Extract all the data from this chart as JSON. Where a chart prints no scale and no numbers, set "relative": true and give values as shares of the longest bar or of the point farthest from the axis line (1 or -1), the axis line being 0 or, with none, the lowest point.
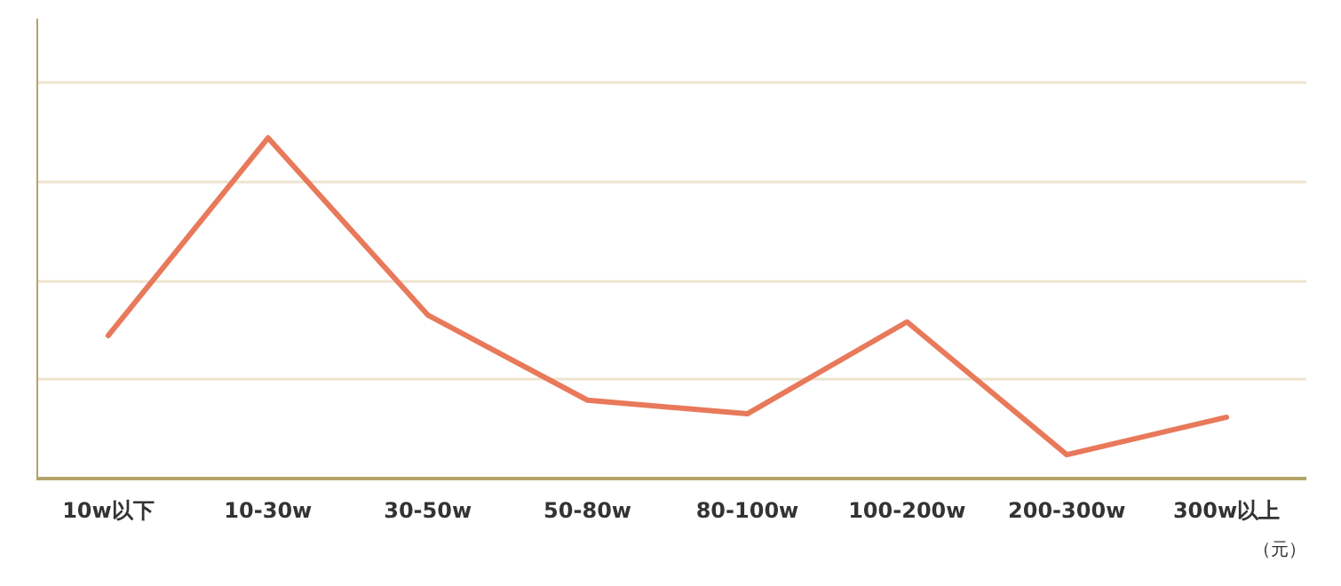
{
  "chart_data": {
    "type": "line",
    "relative": true,
    "xlabel": "（元）",
    "categories": [
      "10w以下",
      "10-30w",
      "30-50w",
      "50-80w",
      "80-100w",
      "100-200w",
      "200-300w",
      "300w以上"
    ],
    "series": [
      {
        "color": "#e8795a",
        "values": [
          0.42,
          1.0,
          0.48,
          0.23,
          0.19,
          0.46,
          0.07,
          0.18
        ]
      }
    ],
    "grid": "y",
    "line_style": "solid"
  }
}
